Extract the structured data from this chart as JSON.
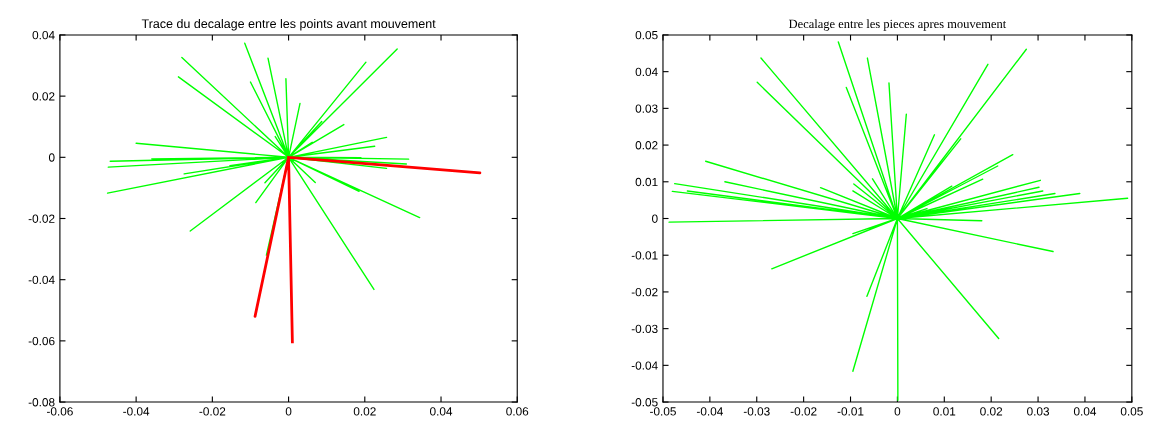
{
  "chart_data": [
    {
      "type": "line",
      "title": "Trace du decalage entre les points avant mouvement",
      "xlim": [
        -0.06,
        0.06
      ],
      "xticks": [
        -0.06,
        -0.04,
        -0.02,
        0,
        0.02,
        0.04,
        0.06
      ],
      "ylim": [
        -0.08,
        0.04
      ],
      "yticks": [
        -0.08,
        -0.06,
        -0.04,
        -0.02,
        0,
        0.02,
        0.04
      ],
      "grid": false,
      "marker": "none",
      "line_style": "solid",
      "series": [
        {
          "color": "#00ff00",
          "x": [
            0,
            -0.0115,
            0,
            -0.0054,
            0,
            -0.028,
            0,
            -0.0289,
            0,
            -0.01,
            0,
            -0.0007,
            0,
            0.003,
            0,
            0.0203,
            0,
            0.0285,
            0,
            0.0145,
            0,
            0.0087,
            0,
            0.0062,
            0,
            0.0257,
            0,
            0.0226,
            0,
            0.0315,
            0,
            0.019,
            0,
            0.0309,
            0,
            0.0257,
            0,
            0.0344,
            0,
            0.0185,
            0,
            0.007,
            0,
            0.0224,
            0,
            -0.0086,
            0,
            -0.0062,
            0,
            -0.0258,
            0,
            -0.0475,
            0,
            -0.0274,
            0,
            -0.0473,
            0,
            -0.0468,
            0,
            -0.04,
            0,
            -0.0359,
            0,
            -0.0154,
            0,
            -0.0035,
            0,
            -0.0058
          ],
          "values": [
            0,
            0.0373,
            0,
            0.0324,
            0,
            0.0326,
            0,
            0.0263,
            0,
            0.0246,
            0,
            0.0257,
            0,
            0.0176,
            0,
            0.0311,
            0,
            0.0354,
            0,
            0.0107,
            0,
            0.0117,
            0,
            0.0049,
            0,
            0.0065,
            0,
            0.0036,
            0,
            -0.0006,
            0,
            -0.0001,
            0,
            -0.0022,
            0,
            -0.0036,
            0,
            -0.0197,
            0,
            -0.0111,
            0,
            -0.0082,
            0,
            -0.0432,
            0,
            -0.0148,
            0,
            -0.0083,
            0,
            -0.0241,
            0,
            -0.0117,
            0,
            -0.0054,
            0,
            -0.0032,
            0,
            -0.0013,
            0,
            0.0046,
            0,
            -0.0005,
            0,
            -0.0027,
            0,
            0.0068,
            0,
            -0.0319
          ]
        },
        {
          "color": "#ff0000",
          "x": [
            0,
            0.0502,
            0,
            -0.0088,
            0,
            0.001
          ],
          "values": [
            0,
            -0.0051,
            0,
            -0.052,
            0,
            -0.0603
          ]
        }
      ]
    },
    {
      "type": "line",
      "title": "Decalage entre les pieces apres mouvement",
      "xlim": [
        -0.05,
        0.05
      ],
      "xticks": [
        -0.05,
        -0.04,
        -0.03,
        -0.02,
        -0.01,
        0,
        0.01,
        0.02,
        0.03,
        0.04,
        0.05
      ],
      "ylim": [
        -0.05,
        0.05
      ],
      "yticks": [
        -0.05,
        -0.04,
        -0.03,
        -0.02,
        -0.01,
        0,
        0.01,
        0.02,
        0.03,
        0.04,
        0.05
      ],
      "grid": false,
      "marker": "none",
      "line_style": "solid",
      "series": [
        {
          "color": "#00ff00",
          "x": [
            0,
            -0.0126,
            0,
            -0.0064,
            0,
            -0.0291,
            0,
            -0.0299,
            0,
            -0.0109,
            0,
            -0.0018,
            0,
            0.0019,
            0,
            0.0079,
            0,
            0.0135,
            0,
            0.0193,
            0,
            0.0275,
            0,
            0.0246,
            0,
            0.0214,
            0,
            0.0182,
            0,
            0.0116,
            0,
            0.0305,
            0,
            0.0302,
            0,
            0.031,
            0,
            0.0336,
            0,
            0.0389,
            0,
            0.0491,
            0,
            0.0063,
            0,
            0.018,
            0,
            0.0332,
            0,
            0.0216,
            0,
            0.0001,
            0,
            -0.0095,
            0,
            -0.0065,
            0,
            -0.0095,
            0,
            -0.0268,
            0,
            -0.0487,
            0,
            -0.048,
            0,
            -0.0448,
            0,
            -0.0475,
            0,
            -0.0368,
            0,
            -0.0409,
            0,
            -0.0164,
            0,
            -0.0093,
            0,
            -0.0095,
            0,
            -0.0053
          ],
          "values": [
            0,
            0.0481,
            0,
            0.0437,
            0,
            0.0437,
            0,
            0.0371,
            0,
            0.0357,
            0,
            0.0369,
            0,
            0.0284,
            0,
            0.0228,
            0,
            0.0217,
            0,
            0.042,
            0,
            0.0461,
            0,
            0.0174,
            0,
            0.0143,
            0,
            0.0107,
            0,
            0.0088,
            0,
            0.0104,
            0,
            0.0085,
            0,
            0.0075,
            0,
            0.0068,
            0,
            0.0068,
            0,
            0.0055,
            0,
            0.0027,
            0,
            -0.0006,
            0,
            -0.009,
            0,
            -0.0327,
            0,
            -0.0495,
            0,
            -0.0416,
            0,
            -0.0212,
            0,
            -0.0041,
            0,
            -0.0137,
            0,
            -0.001,
            0,
            0.0074,
            0,
            0.0075,
            0,
            0.0095,
            0,
            0.01,
            0,
            0.0156,
            0,
            0.0084,
            0,
            0.0094,
            0,
            0.0075,
            0,
            0.0108
          ]
        }
      ]
    }
  ]
}
